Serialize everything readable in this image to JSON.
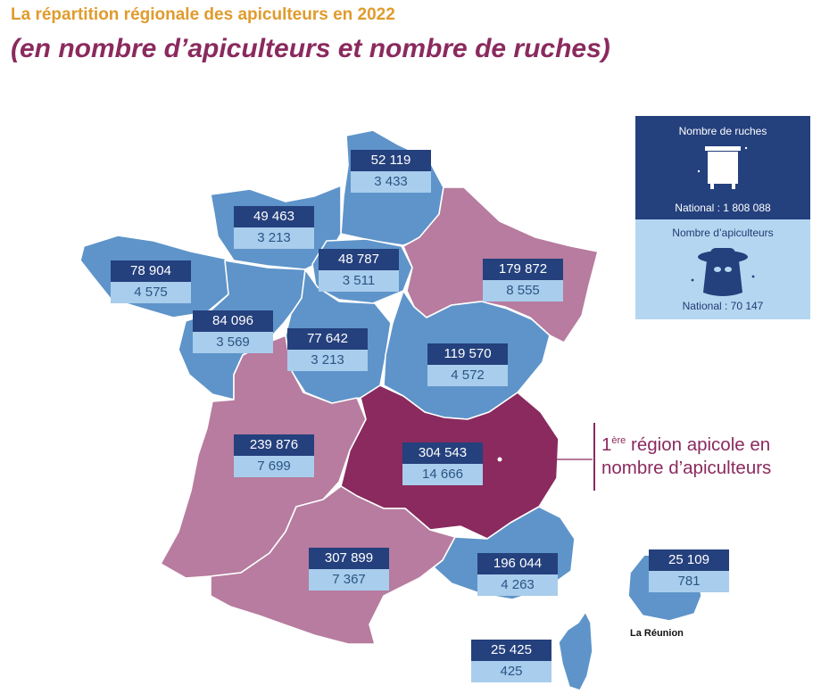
{
  "header": {
    "title": "La répartition régionale des apiculteurs en 2022",
    "subtitle": "(en nombre d’apiculteurs et nombre de ruches)"
  },
  "colors": {
    "blue_region": "#5e94c9",
    "pink_region": "#b77c9f",
    "highlight_region": "#8a2a5e",
    "badge_dark": "#24407d",
    "badge_light": "#a9cdec",
    "title_orange": "#e09b2d"
  },
  "legend": {
    "ruches_title": "Nombre de ruches",
    "ruches_national": "National : 1 808 088",
    "apiculteurs_title": "Nombre d’apiculteurs",
    "apiculteurs_national": "National : 70 147",
    "icons": [
      "beehive-icon",
      "beekeeper-icon"
    ]
  },
  "callout": {
    "rank": "1",
    "rank_suffix": "ère",
    "line1_rest": " région apicole en",
    "line2": "nombre d’apiculteurs"
  },
  "reunion_label": "La Réunion",
  "regions": [
    {
      "id": "hauts-de-france",
      "ruches": "52 119",
      "apiculteurs": "3 433"
    },
    {
      "id": "normandie",
      "ruches": "49 463",
      "apiculteurs": "3 213"
    },
    {
      "id": "ile-de-france",
      "ruches": "48 787",
      "apiculteurs": "3 511"
    },
    {
      "id": "bretagne",
      "ruches": "78 904",
      "apiculteurs": "4 575"
    },
    {
      "id": "pays-de-la-loire",
      "ruches": "84 096",
      "apiculteurs": "3 569"
    },
    {
      "id": "centre-val-de-loire",
      "ruches": "77 642",
      "apiculteurs": "3 213"
    },
    {
      "id": "grand-est",
      "ruches": "179 872",
      "apiculteurs": "8 555"
    },
    {
      "id": "bourgogne-franche-comte",
      "ruches": "119 570",
      "apiculteurs": "4 572"
    },
    {
      "id": "nouvelle-aquitaine",
      "ruches": "239 876",
      "apiculteurs": "7 699"
    },
    {
      "id": "auvergne-rhone-alpes",
      "ruches": "304 543",
      "apiculteurs": "14 666"
    },
    {
      "id": "occitanie",
      "ruches": "307 899",
      "apiculteurs": "7 367"
    },
    {
      "id": "provence-alpes-cote-d-azur",
      "ruches": "196 044",
      "apiculteurs": "4 263"
    },
    {
      "id": "la-reunion",
      "ruches": "25 109",
      "apiculteurs": "781"
    },
    {
      "id": "corse",
      "ruches": "25 425",
      "apiculteurs": "425"
    }
  ]
}
